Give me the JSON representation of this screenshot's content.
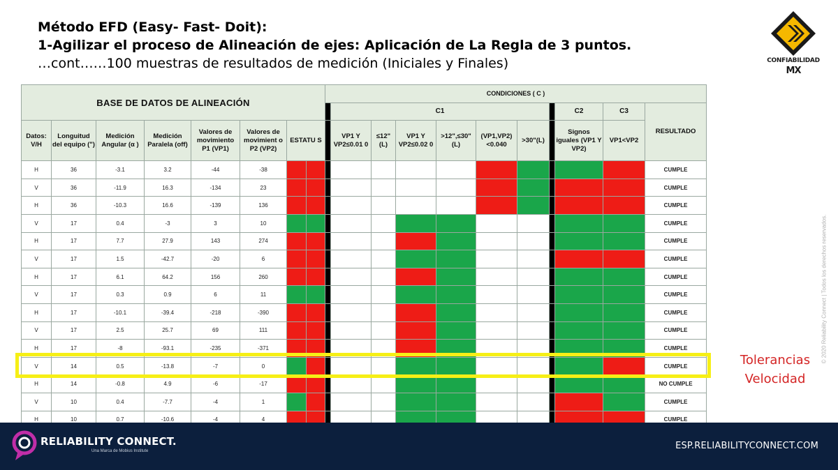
{
  "title": {
    "line1": "Método EFD (Easy- Fast- Doit):",
    "line2": "1-Agilizar el proceso de Alineación de ejes: Aplicación de La Regla de 3 puntos.",
    "line3": "…cont……100 muestras de resultados de medición (Iniciales y Finales)"
  },
  "logo": {
    "text": "CONFIABILIDAD",
    "mark": "MX"
  },
  "copyright": "© 2020 Reliability Connect | Todos los derechos reservados.",
  "table": {
    "database_header": "BASE DE DATOS DE ALINEACIÓN",
    "conditions_header": "CONDICIONES ( C )",
    "c1": "C1",
    "c2": "C2",
    "c3": "C3",
    "result_header": "RESULTADO",
    "columns": [
      "Datos: V/H",
      "Longuitud del equipo (\")",
      "Medición Angular (α )",
      "Medición Paralela (off)",
      "Valores de movimiento P1 (VP1)",
      "Valores de movimient o P2 (VP2)",
      "ESTATU S"
    ],
    "cond_columns": [
      "VP1 Y VP2≤0.01 0",
      "≤12\" (L)",
      "VP1 Y VP2≤0.02 0",
      ">12\",≤30\" (L)",
      "(VP1,VP2) <0.040",
      ">30\"(L)",
      "Signos iguales (VP1 Y VP2)",
      "VP1<VP2"
    ],
    "rows": [
      {
        "vh": "H",
        "len": "36",
        "ang": "-3.1",
        "par": "3.2",
        "vp1": "-44",
        "vp2": "-38",
        "res": "CUMPLE"
      },
      {
        "vh": "V",
        "len": "36",
        "ang": "-11.9",
        "par": "16.3",
        "vp1": "-134",
        "vp2": "23",
        "res": "CUMPLE"
      },
      {
        "vh": "H",
        "len": "36",
        "ang": "-10.3",
        "par": "16.6",
        "vp1": "-139",
        "vp2": "136",
        "res": "CUMPLE"
      },
      {
        "vh": "V",
        "len": "17",
        "ang": "0.4",
        "par": "-3",
        "vp1": "3",
        "vp2": "10",
        "res": "CUMPLE"
      },
      {
        "vh": "H",
        "len": "17",
        "ang": "7.7",
        "par": "27.9",
        "vp1": "143",
        "vp2": "274",
        "res": "CUMPLE"
      },
      {
        "vh": "V",
        "len": "17",
        "ang": "1.5",
        "par": "-42.7",
        "vp1": "-20",
        "vp2": "6",
        "res": "CUMPLE"
      },
      {
        "vh": "H",
        "len": "17",
        "ang": "6.1",
        "par": "64.2",
        "vp1": "156",
        "vp2": "260",
        "res": "CUMPLE"
      },
      {
        "vh": "V",
        "len": "17",
        "ang": "0.3",
        "par": "0.9",
        "vp1": "6",
        "vp2": "11",
        "res": "CUMPLE"
      },
      {
        "vh": "H",
        "len": "17",
        "ang": "-10.1",
        "par": "-39.4",
        "vp1": "-218",
        "vp2": "-390",
        "res": "CUMPLE"
      },
      {
        "vh": "V",
        "len": "17",
        "ang": "2.5",
        "par": "25.7",
        "vp1": "69",
        "vp2": "111",
        "res": "CUMPLE"
      },
      {
        "vh": "H",
        "len": "17",
        "ang": "-8",
        "par": "-93.1",
        "vp1": "-235",
        "vp2": "-371",
        "res": "CUMPLE"
      },
      {
        "vh": "V",
        "len": "14",
        "ang": "0.5",
        "par": "-13.8",
        "vp1": "-7",
        "vp2": "0",
        "res": "CUMPLE"
      },
      {
        "vh": "H",
        "len": "14",
        "ang": "-0.8",
        "par": "4.9",
        "vp1": "-6",
        "vp2": "-17",
        "res": "NO CUMPLE"
      },
      {
        "vh": "V",
        "len": "10",
        "ang": "0.4",
        "par": "-7.7",
        "vp1": "-4",
        "vp2": "1",
        "res": "CUMPLE"
      },
      {
        "vh": "H",
        "len": "10",
        "ang": "0.7",
        "par": "-10.6",
        "vp1": "-4",
        "vp2": "4",
        "res": "CUMPLE"
      }
    ],
    "cell_colors": {
      "r": "#ee1c16",
      "g": "#1aa64a",
      "w": "#ffffff",
      "k": "#000000"
    },
    "row_codes": [
      "rrkwwwwrgkgr",
      "rrkwwwwrgkrr",
      "rrkwwwwrgkrr",
      "ggkwwggwwkgg",
      "rrkwwrgwwkgg",
      "rrkwwggwwkrr",
      "rrkwwrgwwkgg",
      "ggkwwggwwkgg",
      "rrkwwrgwwkgg",
      "rrkwwrgwwkgg",
      "rrkwwrgwwkgg",
      "grkwwggwwkgr",
      "rrkwwggwwkgg",
      "grkwwggwwkrg",
      "rrkwwggwwkrr"
    ]
  },
  "highlight_color": "#f6ef16",
  "note": {
    "line1": "Tolerancias",
    "line2": "Velocidad"
  },
  "footer": {
    "brand": "RELIABILITY CONNECT.",
    "tagline": "Una Marca de Mobius Institute",
    "url": "ESP.RELIABILITYCONNECT.COM"
  }
}
